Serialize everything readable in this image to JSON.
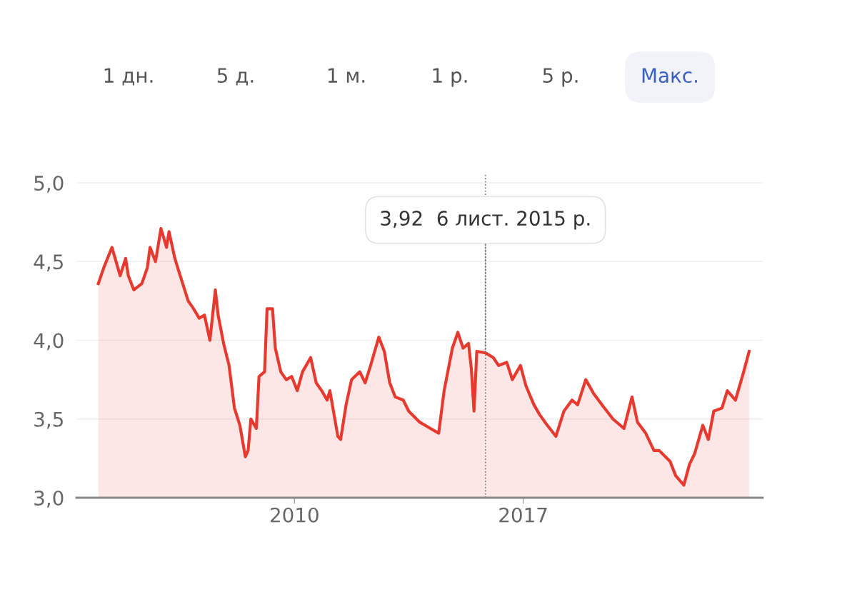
{
  "chart_data": {
    "type": "area",
    "annotations": [
      "1 дн.",
      "5 д.",
      "1 м.",
      "1 р.",
      "5 р.",
      "Макс.",
      {
        "text": "3,92  6 лист. 2015 р.",
        "x": "2015-11-06",
        "y": 3.92
      }
    ],
    "x": [
      "2004-01",
      "2004-03",
      "2004-06",
      "2004-09",
      "2004-11",
      "2004-12",
      "2005-02",
      "2005-05",
      "2005-07",
      "2005-08",
      "2005-10",
      "2005-12",
      "2006-02",
      "2006-03",
      "2006-05",
      "2006-06",
      "2006-08",
      "2006-10",
      "2006-12",
      "2007-02",
      "2007-04",
      "2007-06",
      "2007-08",
      "2007-09",
      "2007-11",
      "2008-01",
      "2008-03",
      "2008-05",
      "2008-07",
      "2008-08",
      "2008-09",
      "2008-11",
      "2008-12",
      "2009-02",
      "2009-03",
      "2009-05",
      "2009-06",
      "2009-08",
      "2009-10",
      "2009-12",
      "2010-02",
      "2010-04",
      "2010-07",
      "2010-09",
      "2010-11",
      "2011-01",
      "2011-02",
      "2011-05",
      "2011-06",
      "2011-08",
      "2011-10",
      "2012-01",
      "2012-03",
      "2012-05",
      "2012-08",
      "2012-10",
      "2012-12",
      "2013-02",
      "2013-05",
      "2013-07",
      "2013-11",
      "2014-03",
      "2014-06",
      "2014-08",
      "2014-11",
      "2015-01",
      "2015-03",
      "2015-05",
      "2015-06",
      "2015-07",
      "2015-08",
      "2015-11-06",
      "2016-02",
      "2016-04",
      "2016-07",
      "2016-09",
      "2016-12",
      "2017-02",
      "2017-05",
      "2017-07",
      "2017-09",
      "2018-01",
      "2018-04",
      "2018-07",
      "2018-09",
      "2018-12",
      "2019-03",
      "2019-06",
      "2019-10",
      "2020-02",
      "2020-05",
      "2020-07",
      "2020-10",
      "2021-01",
      "2021-03",
      "2021-07",
      "2021-09",
      "2021-12",
      "2022-02",
      "2022-04",
      "2022-07",
      "2022-09",
      "2022-11",
      "2023-02",
      "2023-04",
      "2023-07",
      "2023-10",
      "2023-12"
    ],
    "series": [
      {
        "color": "#e8392f",
        "values": [
          4.36,
          4.46,
          4.59,
          4.41,
          4.52,
          4.41,
          4.32,
          4.36,
          4.46,
          4.59,
          4.5,
          4.71,
          4.59,
          4.69,
          4.53,
          4.47,
          4.36,
          4.25,
          4.2,
          4.14,
          4.16,
          4.0,
          4.32,
          4.16,
          3.98,
          3.84,
          3.57,
          3.46,
          3.26,
          3.3,
          3.5,
          3.44,
          3.77,
          3.8,
          4.2,
          4.2,
          3.95,
          3.8,
          3.75,
          3.77,
          3.68,
          3.8,
          3.89,
          3.73,
          3.68,
          3.62,
          3.68,
          3.39,
          3.37,
          3.59,
          3.75,
          3.8,
          3.73,
          3.84,
          4.02,
          3.93,
          3.73,
          3.64,
          3.62,
          3.55,
          3.48,
          3.44,
          3.41,
          3.68,
          3.95,
          4.05,
          3.95,
          3.98,
          3.82,
          3.55,
          3.93,
          3.92,
          3.89,
          3.84,
          3.86,
          3.75,
          3.84,
          3.71,
          3.59,
          3.53,
          3.48,
          3.39,
          3.55,
          3.62,
          3.59,
          3.75,
          3.66,
          3.59,
          3.5,
          3.44,
          3.64,
          3.48,
          3.41,
          3.3,
          3.3,
          3.23,
          3.14,
          3.08,
          3.21,
          3.28,
          3.46,
          3.37,
          3.55,
          3.57,
          3.68,
          3.62,
          3.8,
          3.93
        ]
      }
    ],
    "xlim": [
      "2003-05",
      "2024-05"
    ],
    "xticks": [
      "2010",
      "2017"
    ],
    "ylim": [
      3.0,
      5.05
    ],
    "yticks": [
      {
        "value": 3.0,
        "label": "3,0"
      },
      {
        "value": 3.5,
        "label": "3,5"
      },
      {
        "value": 4.0,
        "label": "4,0"
      },
      {
        "value": 4.5,
        "label": "4,5"
      },
      {
        "value": 5.0,
        "label": "5,0"
      }
    ],
    "ref_lines": [
      {
        "axis": "x",
        "value": "2015-11-06",
        "label": null,
        "color": "#777777",
        "line_style": "dotted"
      }
    ],
    "grid": "y",
    "legend": false,
    "marker": "none",
    "line_style": "solid"
  }
}
